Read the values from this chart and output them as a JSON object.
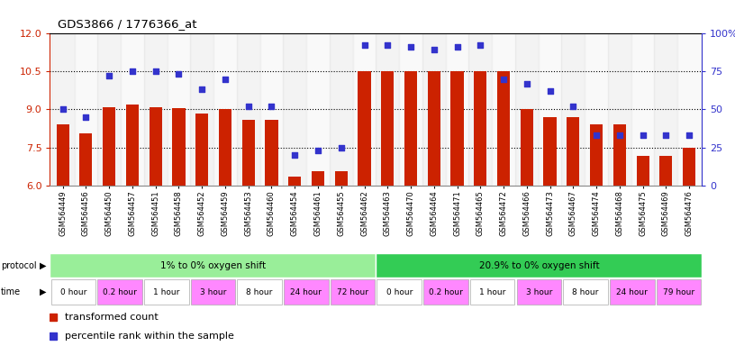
{
  "title": "GDS3866 / 1776366_at",
  "samples": [
    "GSM564449",
    "GSM564456",
    "GSM564450",
    "GSM564457",
    "GSM564451",
    "GSM564458",
    "GSM564452",
    "GSM564459",
    "GSM564453",
    "GSM564460",
    "GSM564454",
    "GSM564461",
    "GSM564455",
    "GSM564462",
    "GSM564463",
    "GSM564470",
    "GSM564464",
    "GSM564471",
    "GSM564465",
    "GSM564472",
    "GSM564466",
    "GSM564473",
    "GSM564467",
    "GSM564474",
    "GSM564468",
    "GSM564475",
    "GSM564469",
    "GSM564476"
  ],
  "transformed_count": [
    8.4,
    8.05,
    9.1,
    9.2,
    9.1,
    9.05,
    8.85,
    9.0,
    8.6,
    8.6,
    6.35,
    6.55,
    6.55,
    10.5,
    10.5,
    10.5,
    10.5,
    10.5,
    10.5,
    10.5,
    9.0,
    8.7,
    8.7,
    8.4,
    8.4,
    7.15,
    7.15,
    7.5
  ],
  "percentile_rank": [
    50,
    45,
    72,
    75,
    75,
    73,
    63,
    70,
    52,
    52,
    20,
    23,
    25,
    92,
    92,
    91,
    89,
    91,
    92,
    70,
    67,
    62,
    52,
    33,
    33,
    33,
    33,
    33
  ],
  "ylim_left": [
    6,
    12
  ],
  "ylim_right": [
    0,
    100
  ],
  "yticks_left": [
    6,
    7.5,
    9,
    10.5,
    12
  ],
  "yticks_right": [
    0,
    25,
    50,
    75,
    100
  ],
  "bar_color": "#CC2200",
  "dot_color": "#3333CC",
  "background_color": "#ffffff",
  "protocol_groups": [
    {
      "label": "1% to 0% oxygen shift",
      "start": 0,
      "end": 14,
      "color": "#99EE99"
    },
    {
      "label": "20.9% to 0% oxygen shift",
      "start": 14,
      "end": 28,
      "color": "#33CC55"
    }
  ],
  "time_groups": [
    {
      "label": "0 hour",
      "start": 0,
      "end": 2,
      "color": "#ffffff"
    },
    {
      "label": "0.2 hour",
      "start": 2,
      "end": 4,
      "color": "#FF88FF"
    },
    {
      "label": "1 hour",
      "start": 4,
      "end": 6,
      "color": "#ffffff"
    },
    {
      "label": "3 hour",
      "start": 6,
      "end": 8,
      "color": "#FF88FF"
    },
    {
      "label": "8 hour",
      "start": 8,
      "end": 10,
      "color": "#ffffff"
    },
    {
      "label": "24 hour",
      "start": 10,
      "end": 12,
      "color": "#FF88FF"
    },
    {
      "label": "72 hour",
      "start": 12,
      "end": 14,
      "color": "#FF88FF"
    },
    {
      "label": "0 hour",
      "start": 14,
      "end": 16,
      "color": "#ffffff"
    },
    {
      "label": "0.2 hour",
      "start": 16,
      "end": 18,
      "color": "#FF88FF"
    },
    {
      "label": "1 hour",
      "start": 18,
      "end": 20,
      "color": "#ffffff"
    },
    {
      "label": "3 hour",
      "start": 20,
      "end": 22,
      "color": "#FF88FF"
    },
    {
      "label": "8 hour",
      "start": 22,
      "end": 24,
      "color": "#ffffff"
    },
    {
      "label": "24 hour",
      "start": 24,
      "end": 26,
      "color": "#FF88FF"
    },
    {
      "label": "79 hour",
      "start": 26,
      "end": 28,
      "color": "#FF88FF"
    }
  ],
  "ylabel_left_color": "#CC2200",
  "ylabel_right_color": "#3333CC",
  "ytick_fontsize": 8,
  "xtick_fontsize": 6,
  "legend_fontsize": 8
}
